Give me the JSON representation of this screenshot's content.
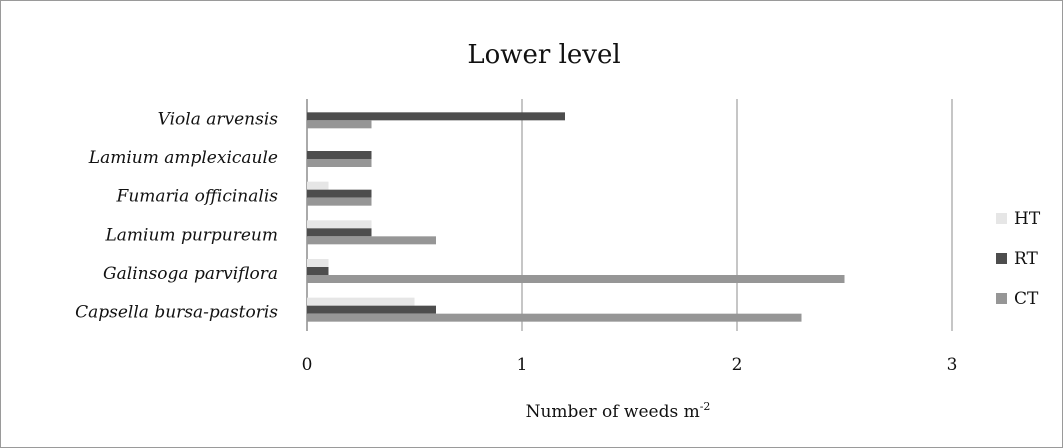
{
  "chart_data": {
    "type": "bar",
    "orientation": "horizontal",
    "title": "Lower level",
    "xlabel": "Number of weeds m",
    "xlabel_superscript": "-2",
    "ylabel": "",
    "xlim": [
      0,
      3
    ],
    "xticks": [
      "0",
      "1",
      "2",
      "3"
    ],
    "grid": "vertical major gridlines",
    "legend_position": "right",
    "categories": [
      "Viola arvensis",
      "Lamium amplexicaule",
      "Fumaria officinalis",
      "Lamium purpureum",
      "Galinsoga parviflora",
      "Capsella bursa-pastoris"
    ],
    "series": [
      {
        "name": "HT",
        "color": "#e6e6e6",
        "values": [
          0,
          0,
          0.1,
          0.3,
          0.1,
          0.5
        ]
      },
      {
        "name": "RT",
        "color": "#4d4d4d",
        "values": [
          1.2,
          0.3,
          0.3,
          0.3,
          0.1,
          0.6
        ]
      },
      {
        "name": "CT",
        "color": "#969696",
        "values": [
          0.3,
          0.3,
          0.3,
          0.6,
          2.5,
          2.3
        ]
      }
    ]
  }
}
